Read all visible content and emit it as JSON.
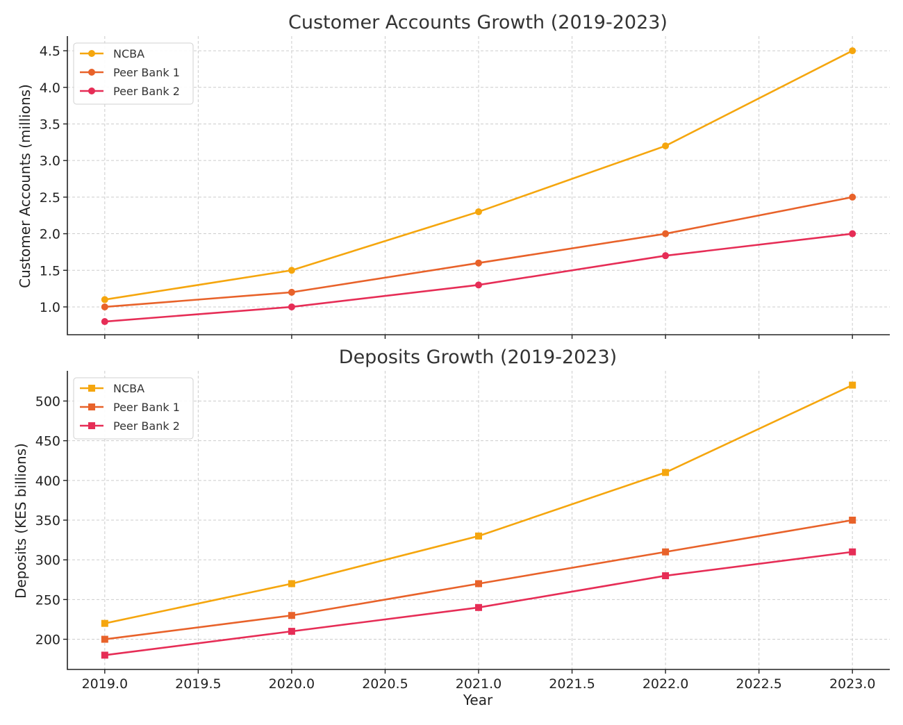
{
  "chart_data": [
    {
      "type": "line",
      "title": "Customer Accounts Growth (2019-2023)",
      "xlabel": "",
      "ylabel": "Customer Accounts (millions)",
      "x": [
        2019,
        2020,
        2021,
        2022,
        2023
      ],
      "xlim": [
        2018.8,
        2023.2
      ],
      "xticks": [
        "2019.0",
        "2019.5",
        "2020.0",
        "2020.5",
        "2021.0",
        "2021.5",
        "2022.0",
        "2022.5",
        "2023.0"
      ],
      "ylim": [
        0.62,
        4.7
      ],
      "yticks": [
        "1.0",
        "1.5",
        "2.0",
        "2.5",
        "3.0",
        "3.5",
        "4.0",
        "4.5"
      ],
      "marker": "circle",
      "grid": true,
      "legend": "top-left",
      "series": [
        {
          "name": "NCBA",
          "color": "#f5a60e",
          "values": [
            1.1,
            1.5,
            2.3,
            3.2,
            4.5
          ]
        },
        {
          "name": "Peer Bank 1",
          "color": "#e8622a",
          "values": [
            1.0,
            1.2,
            1.6,
            2.0,
            2.5
          ]
        },
        {
          "name": "Peer Bank 2",
          "color": "#e62d56",
          "values": [
            0.8,
            1.0,
            1.3,
            1.7,
            2.0
          ]
        }
      ]
    },
    {
      "type": "line",
      "title": "Deposits Growth (2019-2023)",
      "xlabel": "Year",
      "ylabel": "Deposits (KES billions)",
      "x": [
        2019,
        2020,
        2021,
        2022,
        2023
      ],
      "xlim": [
        2018.8,
        2023.2
      ],
      "xticks": [
        "2019.0",
        "2019.5",
        "2020.0",
        "2020.5",
        "2021.0",
        "2021.5",
        "2022.0",
        "2022.5",
        "2023.0"
      ],
      "ylim": [
        162,
        538
      ],
      "yticks": [
        "200",
        "250",
        "300",
        "350",
        "400",
        "450",
        "500"
      ],
      "marker": "square",
      "grid": true,
      "legend": "top-left",
      "series": [
        {
          "name": "NCBA",
          "color": "#f5a60e",
          "values": [
            220,
            270,
            330,
            410,
            520
          ]
        },
        {
          "name": "Peer Bank 1",
          "color": "#e8622a",
          "values": [
            200,
            230,
            270,
            310,
            350
          ]
        },
        {
          "name": "Peer Bank 2",
          "color": "#e62d56",
          "values": [
            180,
            210,
            240,
            280,
            310
          ]
        }
      ]
    }
  ]
}
